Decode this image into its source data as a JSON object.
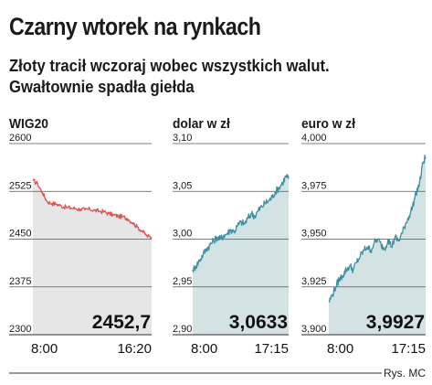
{
  "header": {
    "title": "Czarny wtorek na rynkach",
    "subtitle_lines": [
      "Złoty tracił wczoraj wobec wszystkich walut.",
      "Gwałtownie spadła giełda"
    ]
  },
  "credit": "Rys. MC",
  "colors": {
    "wig_line": "#d9534f",
    "wig_fill": "#e6e6e6",
    "fx_line": "#3f8fa3",
    "fx_fill": "#d3e3e3",
    "grid": "#555555"
  },
  "chart_data": [
    {
      "type": "line",
      "title": "WIG20",
      "ylim": [
        2300,
        2600
      ],
      "yticks": [
        "2600",
        "2525",
        "2450",
        "2375",
        "2300"
      ],
      "x_labels": [
        "8:00",
        "16:20"
      ],
      "last_value_label": "2452,7",
      "grid": true,
      "series": [
        {
          "x": [
            "8:00",
            "8:20",
            "8:40",
            "9:00",
            "9:20",
            "9:40",
            "10:00",
            "10:20",
            "10:40",
            "11:00",
            "11:20",
            "11:40",
            "12:00",
            "12:20",
            "12:40",
            "13:00",
            "13:20",
            "13:40",
            "14:00",
            "14:20",
            "14:40",
            "15:00",
            "15:20",
            "15:40",
            "16:00",
            "16:20"
          ],
          "values": [
            2542,
            2537,
            2523,
            2509,
            2506,
            2505,
            2502,
            2500,
            2499,
            2498,
            2497,
            2496,
            2497,
            2495,
            2494,
            2493,
            2490,
            2488,
            2486,
            2485,
            2482,
            2476,
            2469,
            2463,
            2455,
            2453
          ]
        }
      ]
    },
    {
      "type": "line",
      "title": "dolar w zł",
      "ylim": [
        2.9,
        3.1
      ],
      "yticks": [
        "3,10",
        "3,05",
        "3,00",
        "2,95",
        "2,90"
      ],
      "x_labels": [
        "8:00",
        "17:15"
      ],
      "last_value_label": "3,0633",
      "grid": true,
      "series": [
        {
          "x": [
            "8:00",
            "8:20",
            "8:40",
            "9:00",
            "9:20",
            "9:40",
            "10:00",
            "10:20",
            "10:40",
            "11:00",
            "11:20",
            "11:40",
            "12:00",
            "12:20",
            "12:40",
            "13:00",
            "13:20",
            "13:40",
            "14:00",
            "14:20",
            "14:40",
            "15:00",
            "15:20",
            "15:40",
            "16:00",
            "16:20",
            "16:40",
            "17:00",
            "17:15"
          ],
          "values": [
            2.968,
            2.972,
            2.978,
            2.984,
            2.99,
            2.994,
            2.998,
            3.002,
            3.0,
            3.004,
            3.006,
            3.01,
            3.008,
            3.014,
            3.018,
            3.016,
            3.022,
            3.027,
            3.024,
            3.03,
            3.034,
            3.038,
            3.04,
            3.044,
            3.05,
            3.054,
            3.059,
            3.066,
            3.063
          ]
        }
      ]
    },
    {
      "type": "line",
      "title": "euro w zł",
      "ylim": [
        3.9,
        4.0
      ],
      "yticks": [
        "4,000",
        "3,975",
        "3,950",
        "3,925",
        "3,900"
      ],
      "x_labels": [
        "8:00",
        "17:15"
      ],
      "last_value_label": "3,9927",
      "grid": true,
      "series": [
        {
          "x": [
            "8:00",
            "8:20",
            "8:40",
            "9:00",
            "9:20",
            "9:40",
            "10:00",
            "10:20",
            "10:40",
            "11:00",
            "11:20",
            "11:40",
            "12:00",
            "12:20",
            "12:40",
            "13:00",
            "13:20",
            "13:40",
            "14:00",
            "14:20",
            "14:40",
            "15:00",
            "15:20",
            "15:40",
            "16:00",
            "16:20",
            "16:40",
            "17:00",
            "17:15"
          ],
          "values": [
            3.917,
            3.921,
            3.925,
            3.929,
            3.931,
            3.934,
            3.936,
            3.934,
            3.938,
            3.941,
            3.944,
            3.946,
            3.944,
            3.948,
            3.95,
            3.947,
            3.945,
            3.95,
            3.946,
            3.951,
            3.949,
            3.953,
            3.958,
            3.962,
            3.967,
            3.974,
            3.979,
            3.99,
            3.993
          ]
        }
      ]
    }
  ]
}
